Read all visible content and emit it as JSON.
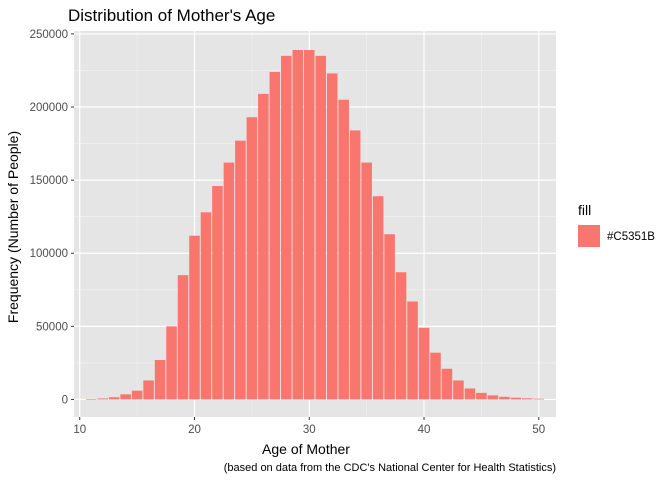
{
  "chart_data": {
    "type": "bar",
    "title": "Distribution of Mother's Age",
    "xlabel": "Age of Mother",
    "ylabel": "Frequency (Number of People)",
    "caption": "(based on data from the CDC's National Center for Health Statistics)",
    "xlim": [
      9.5,
      51.5
    ],
    "ylim": [
      -12000,
      252000
    ],
    "x_ticks": [
      10,
      20,
      30,
      40,
      50
    ],
    "y_ticks": [
      0,
      50000,
      100000,
      150000,
      200000,
      250000
    ],
    "x_tick_labels": [
      "10",
      "20",
      "30",
      "40",
      "50"
    ],
    "y_tick_labels": [
      "0",
      "50000",
      "100000",
      "150000",
      "200000",
      "250000"
    ],
    "grid": true,
    "panel_background": "#E5E5E5",
    "bar_color": "#F8766D",
    "legend": {
      "title": "fill",
      "position": "right",
      "entries": [
        {
          "label": "#C5351B",
          "color": "#F8766D"
        }
      ]
    },
    "x": [
      11,
      12,
      13,
      14,
      15,
      16,
      17,
      18,
      19,
      20,
      21,
      22,
      23,
      24,
      25,
      26,
      27,
      28,
      29,
      30,
      31,
      32,
      33,
      34,
      35,
      36,
      37,
      38,
      39,
      40,
      41,
      42,
      43,
      44,
      45,
      46,
      47,
      48,
      49,
      50
    ],
    "values": [
      200,
      700,
      1500,
      3500,
      6000,
      13000,
      27000,
      50000,
      85000,
      112000,
      128000,
      146000,
      162000,
      177000,
      193000,
      209000,
      224000,
      235000,
      239000,
      239000,
      235000,
      223000,
      205000,
      184000,
      162000,
      139000,
      113000,
      87000,
      67000,
      49000,
      32000,
      21000,
      13000,
      7500,
      4500,
      2800,
      1800,
      1200,
      800,
      500
    ]
  }
}
